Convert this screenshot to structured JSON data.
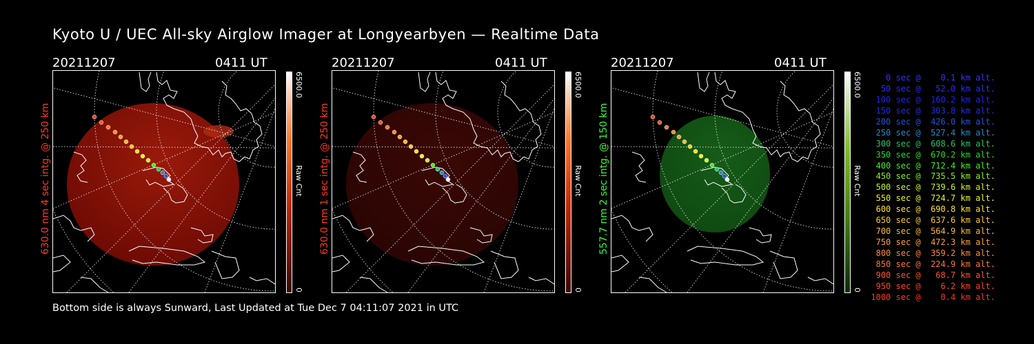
{
  "title": "Kyoto U / UEC All-sky Airglow Imager at Longyearbyen — Realtime Data",
  "footer": "Bottom side is always Sunward, Last Updated at Tue Dec  7 04:11:07 2021 in UTC",
  "panels": [
    {
      "date": "20211207",
      "time": "0411 UT",
      "ylabel": "630.0 nm 4 sec intg. @ 250 km",
      "label_color": "#ff3a1f",
      "cbar_max": "6500.0",
      "cbar_min": "0",
      "cbar_unit": "Raw Cnt",
      "colormap": "red",
      "fill_color": "#6e0b04",
      "glow_color": "#9a1a0a"
    },
    {
      "date": "20211207",
      "time": "0411 UT",
      "ylabel": "630.0 nm 1 sec intg. @ 250 km",
      "label_color": "#ff3a1f",
      "cbar_max": "6500.0",
      "cbar_min": "0",
      "cbar_unit": "Raw Cnt",
      "colormap": "red",
      "fill_color": "#2a0503",
      "glow_color": "#3a0805"
    },
    {
      "date": "20211207",
      "time": "0411 UT",
      "ylabel": "557.7 nm 2 sec intg. @ 150 km",
      "label_color": "#33ff33",
      "cbar_max": "6500.0",
      "cbar_min": "0",
      "cbar_unit": "Raw Cnt",
      "colormap": "green",
      "fill_color": "#0f4a12",
      "glow_color": "#165c18"
    }
  ],
  "legend": [
    {
      "text": "   0 sec @    0.1 km alt.",
      "color": "#3232ff"
    },
    {
      "text": "  50 sec @   52.0 km alt.",
      "color": "#2b2bff"
    },
    {
      "text": " 100 sec @  160.2 km alt.",
      "color": "#2222ff"
    },
    {
      "text": " 150 sec @  303.8 km alt.",
      "color": "#1e2ee6"
    },
    {
      "text": " 200 sec @  426.0 km alt.",
      "color": "#2255dd"
    },
    {
      "text": " 250 sec @  527.4 km alt.",
      "color": "#2a8acf"
    },
    {
      "text": " 300 sec @  608.6 km alt.",
      "color": "#22c86a"
    },
    {
      "text": " 350 sec @  670.2 km alt.",
      "color": "#22dd22"
    },
    {
      "text": " 400 sec @  712.4 km alt.",
      "color": "#44ee22"
    },
    {
      "text": " 450 sec @  735.5 km alt.",
      "color": "#88f022"
    },
    {
      "text": " 500 sec @  739.6 km alt.",
      "color": "#c8f522"
    },
    {
      "text": " 550 sec @  724.7 km alt.",
      "color": "#eef522"
    },
    {
      "text": " 600 sec @  690.8 km alt.",
      "color": "#ffe422"
    },
    {
      "text": " 650 sec @  637.6 km alt.",
      "color": "#ffcc22"
    },
    {
      "text": " 700 sec @  564.9 km alt.",
      "color": "#ffb833"
    },
    {
      "text": " 750 sec @  472.3 km alt.",
      "color": "#ffa033"
    },
    {
      "text": " 800 sec @  359.2 km alt.",
      "color": "#ff8a33"
    },
    {
      "text": " 850 sec @  224.9 km alt.",
      "color": "#ff7733"
    },
    {
      "text": " 900 sec @   68.7 km alt.",
      "color": "#ff5522"
    },
    {
      "text": " 950 sec @    6.2 km alt.",
      "color": "#ff4422"
    },
    {
      "text": "1000 sec @    0.4 km alt.",
      "color": "#ff3322"
    }
  ]
}
